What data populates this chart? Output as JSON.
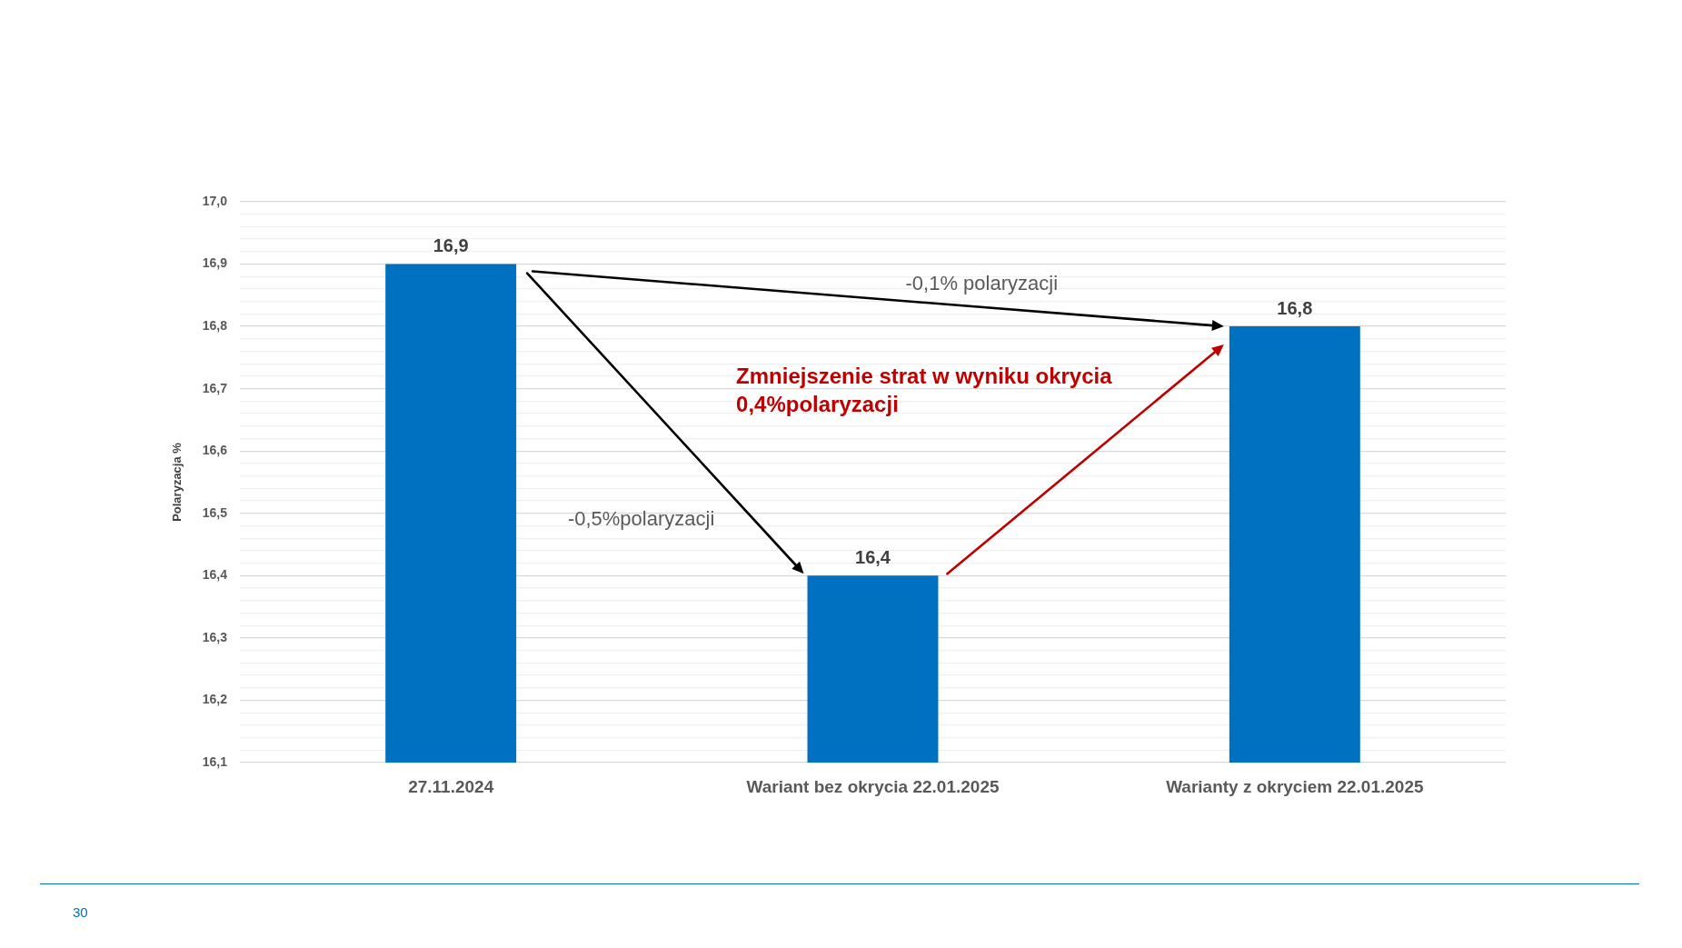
{
  "chart_data": {
    "type": "bar",
    "ylabel": "Polaryzacja %",
    "categories": [
      "27.11.2024",
      "Wariant bez okrycia 22.01.2025",
      "Warianty z okryciem 22.01.2025"
    ],
    "values": [
      16.9,
      16.4,
      16.8
    ],
    "color": "#0070c0",
    "value_labels": [
      "16,9",
      "16,4",
      "16,8"
    ],
    "ylim": [
      16.1,
      17.0
    ],
    "yticks": [
      {
        "value": 16.1,
        "label": "16,1"
      },
      {
        "value": 16.12,
        "label": null
      },
      {
        "value": 16.14,
        "label": null
      },
      {
        "value": 16.16,
        "label": null
      },
      {
        "value": 16.18,
        "label": null
      },
      {
        "value": 16.2,
        "label": "16,2"
      },
      {
        "value": 16.22,
        "label": null
      },
      {
        "value": 16.24,
        "label": null
      },
      {
        "value": 16.26,
        "label": null
      },
      {
        "value": 16.28,
        "label": null
      },
      {
        "value": 16.3,
        "label": "16,3"
      },
      {
        "value": 16.32,
        "label": null
      },
      {
        "value": 16.34,
        "label": null
      },
      {
        "value": 16.36,
        "label": null
      },
      {
        "value": 16.38,
        "label": null
      },
      {
        "value": 16.4,
        "label": "16,4"
      },
      {
        "value": 16.42,
        "label": null
      },
      {
        "value": 16.44,
        "label": null
      },
      {
        "value": 16.46,
        "label": null
      },
      {
        "value": 16.48,
        "label": null
      },
      {
        "value": 16.5,
        "label": "16,5"
      },
      {
        "value": 16.52,
        "label": null
      },
      {
        "value": 16.54,
        "label": null
      },
      {
        "value": 16.56,
        "label": null
      },
      {
        "value": 16.58,
        "label": null
      },
      {
        "value": 16.6,
        "label": "16,6"
      },
      {
        "value": 16.62,
        "label": null
      },
      {
        "value": 16.64,
        "label": null
      },
      {
        "value": 16.66,
        "label": null
      },
      {
        "value": 16.68,
        "label": null
      },
      {
        "value": 16.7,
        "label": "16,7"
      },
      {
        "value": 16.72,
        "label": null
      },
      {
        "value": 16.74,
        "label": null
      },
      {
        "value": 16.76,
        "label": null
      },
      {
        "value": 16.78,
        "label": null
      },
      {
        "value": 16.8,
        "label": "16,8"
      },
      {
        "value": 16.82,
        "label": null
      },
      {
        "value": 16.84,
        "label": null
      },
      {
        "value": 16.86,
        "label": null
      },
      {
        "value": 16.88,
        "label": null
      },
      {
        "value": 16.9,
        "label": "16,9"
      },
      {
        "value": 16.92,
        "label": null
      },
      {
        "value": 16.94,
        "label": null
      },
      {
        "value": 16.96,
        "label": null
      },
      {
        "value": 16.98,
        "label": null
      },
      {
        "value": 17.0,
        "label": "17,0"
      }
    ],
    "grid": "y",
    "annotations": [
      "-0,1% polaryzacji",
      "-0,5%polaryzacji",
      "Zmniejszenie strat w wyniku okrycia 0,4%polaryzacji",
      "30"
    ]
  }
}
